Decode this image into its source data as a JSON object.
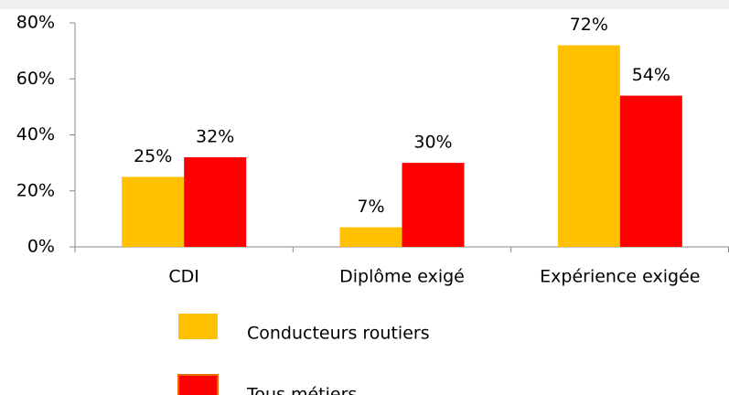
{
  "chart_data": {
    "type": "bar",
    "categories": [
      "CDI",
      "Diplôme exigé",
      "Expérience exigée"
    ],
    "series": [
      {
        "name": "Conducteurs routiers",
        "color": "#FFC000",
        "values": [
          25,
          7,
          72
        ],
        "value_labels": [
          "25%",
          "7%",
          "72%"
        ]
      },
      {
        "name": "Tous métiers",
        "color": "#FF0000",
        "values": [
          32,
          30,
          54
        ],
        "value_labels": [
          "32%",
          "30%",
          "54%"
        ]
      }
    ],
    "ylim": [
      0,
      80
    ],
    "yticks": [
      {
        "value": 0,
        "label": "0%"
      },
      {
        "value": 20,
        "label": "20%"
      },
      {
        "value": 40,
        "label": "40%"
      },
      {
        "value": 60,
        "label": "60%"
      },
      {
        "value": 80,
        "label": "80%"
      }
    ],
    "grid": false,
    "legend": "bottom"
  }
}
